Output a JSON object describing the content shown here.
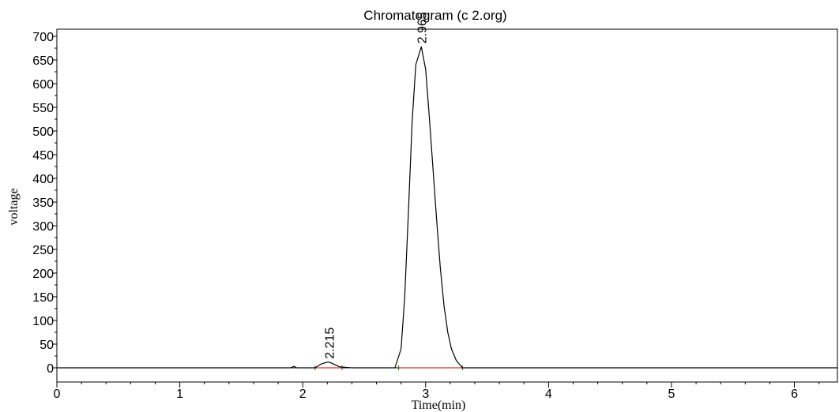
{
  "chart_data": {
    "type": "line",
    "title": "Chromatogram (c 2.org)",
    "xlabel": "Time(min)",
    "ylabel": "voltage",
    "xlim": [
      0,
      6.35
    ],
    "ylim": [
      -30,
      715
    ],
    "x_ticks": [
      0,
      1,
      2,
      3,
      4,
      5,
      6
    ],
    "y_ticks": [
      0,
      50,
      100,
      150,
      200,
      250,
      300,
      350,
      400,
      450,
      500,
      550,
      600,
      650,
      700
    ],
    "grid": false,
    "colors": {
      "trace": "#000000",
      "baseline": "#cc3333",
      "marker": "#2e7d32"
    },
    "peaks": [
      {
        "label": "2.215",
        "time": 2.215,
        "height": 12
      },
      {
        "label": "2.965",
        "time": 2.965,
        "height": 678
      }
    ],
    "series": [
      {
        "x": [
          0,
          1.9,
          1.93,
          1.95,
          2.1,
          2.15,
          2.2,
          2.215,
          2.25,
          2.3,
          2.4,
          2.75,
          2.8,
          2.83,
          2.86,
          2.89,
          2.92,
          2.965,
          3.0,
          3.03,
          3.06,
          3.09,
          3.12,
          3.15,
          3.18,
          3.21,
          3.25,
          3.3,
          6.35
        ],
        "y": [
          0,
          0,
          3,
          0,
          0,
          8,
          12,
          12,
          8,
          2,
          0,
          0,
          40,
          150,
          330,
          520,
          640,
          678,
          630,
          530,
          420,
          310,
          210,
          130,
          75,
          40,
          15,
          0,
          0
        ]
      }
    ]
  }
}
